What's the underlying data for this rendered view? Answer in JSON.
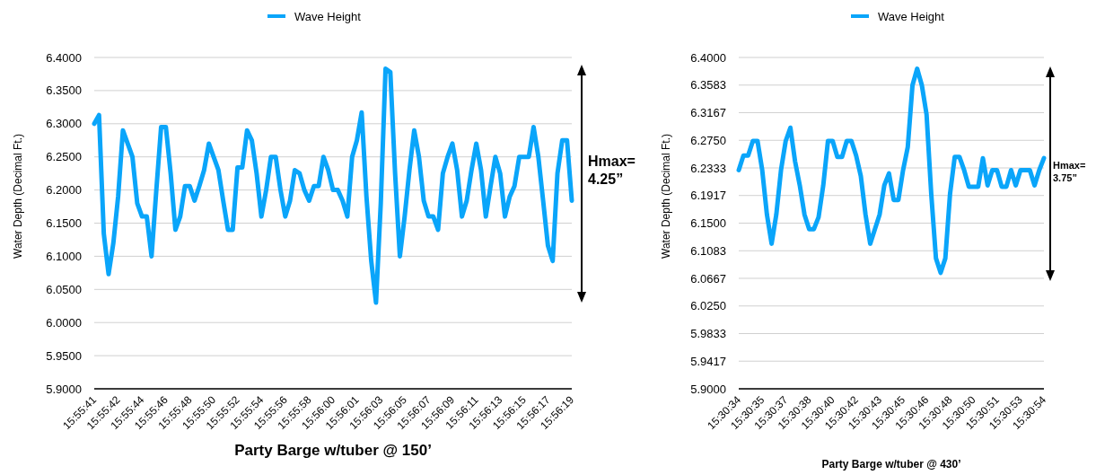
{
  "chart_data": [
    {
      "type": "line",
      "xlabel": "Party Barge w/tuber @ 150’",
      "ylabel": "Water Depth (Decimal Ft.)",
      "legend": "top",
      "grid": "y",
      "annotations": [
        "Hmax=\n4.25”"
      ],
      "ylim": [
        5.9,
        6.4
      ],
      "yticks": [
        {
          "value": 5.9,
          "label": "5.9000"
        },
        {
          "value": 5.95,
          "label": "5.9500"
        },
        {
          "value": 6.0,
          "label": "6.0000"
        },
        {
          "value": 6.05,
          "label": "6.0500"
        },
        {
          "value": 6.1,
          "label": "6.1000"
        },
        {
          "value": 6.15,
          "label": "6.1500"
        },
        {
          "value": 6.2,
          "label": "6.2000"
        },
        {
          "value": 6.25,
          "label": "6.2500"
        },
        {
          "value": 6.3,
          "label": "6.3000"
        },
        {
          "value": 6.35,
          "label": "6.3500"
        },
        {
          "value": 6.4,
          "label": "6.4000"
        }
      ],
      "categories": [
        "15:55:41",
        null,
        null,
        null,
        null,
        "15:55:42",
        null,
        null,
        null,
        null,
        "15:55:44",
        null,
        null,
        null,
        null,
        "15:55:46",
        null,
        null,
        null,
        null,
        "15:55:48",
        null,
        null,
        null,
        null,
        "15:55:50",
        null,
        null,
        null,
        null,
        "15:55:52",
        null,
        null,
        null,
        null,
        "15:55:54",
        null,
        null,
        null,
        null,
        "15:55:56",
        null,
        null,
        null,
        null,
        "15:55:58",
        null,
        null,
        null,
        null,
        "15:56:00",
        null,
        null,
        null,
        null,
        "15:56:01",
        null,
        null,
        null,
        null,
        "15:56:03",
        null,
        null,
        null,
        null,
        "15:56:05",
        null,
        null,
        null,
        null,
        "15:56:07",
        null,
        null,
        null,
        null,
        "15:56:09",
        null,
        null,
        null,
        null,
        "15:56:11",
        null,
        null,
        null,
        null,
        "15:56:13",
        null,
        null,
        null,
        null,
        "15:56:15",
        null,
        null,
        null,
        null,
        "15:56:17",
        null,
        null,
        null,
        null,
        "15:56:19"
      ],
      "series": [
        {
          "name": "Wave Height",
          "color": "#0aa5fa",
          "values": [
            6.3,
            6.313,
            6.134,
            6.073,
            6.12,
            6.19,
            6.29,
            6.27,
            6.25,
            6.18,
            6.16,
            6.16,
            6.1,
            6.2,
            6.295,
            6.295,
            6.225,
            6.14,
            6.16,
            6.206,
            6.206,
            6.184,
            6.206,
            6.23,
            6.27,
            6.25,
            6.23,
            6.184,
            6.14,
            6.14,
            6.234,
            6.234,
            6.29,
            6.275,
            6.225,
            6.16,
            6.2,
            6.25,
            6.25,
            6.2,
            6.16,
            6.184,
            6.23,
            6.225,
            6.2,
            6.184,
            6.206,
            6.206,
            6.25,
            6.23,
            6.2,
            6.2,
            6.184,
            6.16,
            6.25,
            6.275,
            6.317,
            6.19,
            6.093,
            6.03,
            6.18,
            6.383,
            6.378,
            6.225,
            6.1,
            6.16,
            6.23,
            6.29,
            6.25,
            6.184,
            6.16,
            6.16,
            6.14,
            6.225,
            6.25,
            6.27,
            6.23,
            6.16,
            6.184,
            6.23,
            6.27,
            6.23,
            6.16,
            6.206,
            6.25,
            6.225,
            6.16,
            6.19,
            6.206,
            6.25,
            6.25,
            6.25,
            6.295,
            6.25,
            6.184,
            6.116,
            6.093,
            6.225,
            6.275,
            6.275,
            6.184
          ]
        }
      ]
    },
    {
      "type": "line",
      "xlabel": "Party Barge w/tuber @ 430’",
      "ylabel": "Water Depth (Decimal Ft.)",
      "legend": "top",
      "grid": "y",
      "annotations": [
        "Hmax=\n3.75”"
      ],
      "ylim": [
        5.9,
        6.4
      ],
      "yticks": [
        {
          "value": 5.9,
          "label": "5.9000"
        },
        {
          "value": 5.9417,
          "label": "5.9417"
        },
        {
          "value": 5.9833,
          "label": "5.9833"
        },
        {
          "value": 6.025,
          "label": "6.0250"
        },
        {
          "value": 6.0667,
          "label": "6.0667"
        },
        {
          "value": 6.1083,
          "label": "6.1083"
        },
        {
          "value": 6.15,
          "label": "6.1500"
        },
        {
          "value": 6.1917,
          "label": "6.1917"
        },
        {
          "value": 6.2333,
          "label": "6.2333"
        },
        {
          "value": 6.275,
          "label": "6.2750"
        },
        {
          "value": 6.3167,
          "label": "6.3167"
        },
        {
          "value": 6.3583,
          "label": "6.3583"
        },
        {
          "value": 6.4,
          "label": "6.4000"
        }
      ],
      "categories": [
        "15:30:34",
        null,
        null,
        null,
        null,
        "15:30:35",
        null,
        null,
        null,
        null,
        "15:30:37",
        null,
        null,
        null,
        null,
        "15:30:38",
        null,
        null,
        null,
        null,
        "15:30:40",
        null,
        null,
        null,
        null,
        "15:30:42",
        null,
        null,
        null,
        null,
        "15:30:43",
        null,
        null,
        null,
        null,
        "15:30:45",
        null,
        null,
        null,
        null,
        "15:30:46",
        null,
        null,
        null,
        null,
        "15:30:48",
        null,
        null,
        null,
        null,
        "15:30:50",
        null,
        null,
        null,
        null,
        "15:30:51",
        null,
        null,
        null,
        null,
        "15:30:53",
        null,
        null,
        null,
        null,
        "15:30:54"
      ],
      "series": [
        {
          "name": "Wave Height",
          "color": "#0aa5fa",
          "values": [
            6.23,
            6.252,
            6.252,
            6.274,
            6.274,
            6.23,
            6.163,
            6.119,
            6.163,
            6.23,
            6.274,
            6.294,
            6.243,
            6.207,
            6.163,
            6.141,
            6.141,
            6.159,
            6.207,
            6.274,
            6.274,
            6.25,
            6.25,
            6.274,
            6.274,
            6.252,
            6.221,
            6.163,
            6.119,
            6.141,
            6.163,
            6.207,
            6.225,
            6.185,
            6.185,
            6.23,
            6.265,
            6.358,
            6.383,
            6.358,
            6.314,
            6.194,
            6.097,
            6.075,
            6.097,
            6.194,
            6.25,
            6.25,
            6.23,
            6.205,
            6.205,
            6.205,
            6.248,
            6.207,
            6.23,
            6.23,
            6.205,
            6.205,
            6.23,
            6.207,
            6.23,
            6.23,
            6.23,
            6.207,
            6.23,
            6.248
          ]
        }
      ]
    }
  ]
}
